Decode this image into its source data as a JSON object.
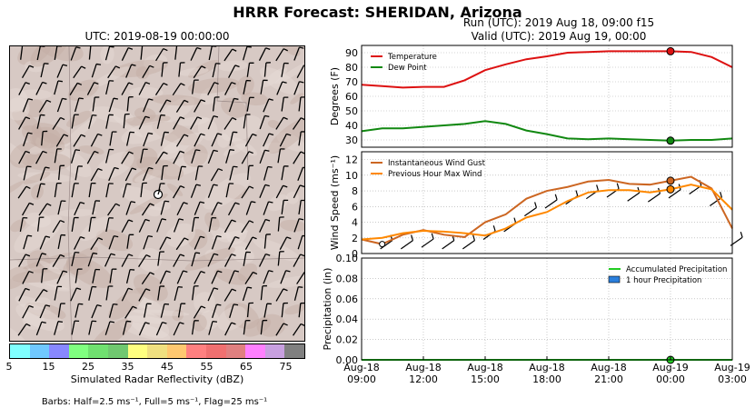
{
  "page": {
    "title": "HRRR Forecast: SHERIDAN, Arizona",
    "map_title": "UTC: 2019-08-19 00:00:00",
    "run_label": "Run (UTC): 2019 Aug 18, 09:00 f15",
    "valid_label": "Valid (UTC): 2019 Aug 19, 00:00",
    "colorbar_label": "Simulated Radar Reflectivity (dBZ)",
    "colorbar_ticks": [
      "5",
      "15",
      "25",
      "35",
      "45",
      "55",
      "65",
      "75"
    ],
    "colorbar_colors": [
      "#80ffff",
      "#70c8ff",
      "#8888ff",
      "#80ff80",
      "#70e070",
      "#70c870",
      "#ffff80",
      "#f0e080",
      "#ffc870",
      "#ff8080",
      "#f07070",
      "#e08080",
      "#ff80ff",
      "#c8a0e0",
      "#808080"
    ],
    "barb_note": "Barbs: Half=2.5 ms⁻¹, Full=5 ms⁻¹, Flag=25 ms⁻¹"
  },
  "chart_data": [
    {
      "type": "line",
      "ylabel": "Degrees (F)",
      "ylim": [
        25,
        95
      ],
      "yticks": [
        30,
        40,
        50,
        60,
        70,
        80,
        90
      ],
      "legend": "upper-left",
      "x": [
        "Aug-18 09:00",
        "Aug-18 10:00",
        "Aug-18 11:00",
        "Aug-18 12:00",
        "Aug-18 13:00",
        "Aug-18 14:00",
        "Aug-18 15:00",
        "Aug-18 16:00",
        "Aug-18 17:00",
        "Aug-18 18:00",
        "Aug-18 19:00",
        "Aug-18 20:00",
        "Aug-18 21:00",
        "Aug-18 22:00",
        "Aug-18 23:00",
        "Aug-19 00:00",
        "Aug-19 01:00",
        "Aug-19 02:00",
        "Aug-19 03:00"
      ],
      "series": [
        {
          "name": "Temperature",
          "color": "#dd1111",
          "values": [
            68,
            67,
            66,
            66.5,
            66.5,
            71,
            78,
            82,
            85.5,
            87.5,
            90,
            90.5,
            91,
            91,
            91,
            91,
            90.5,
            87,
            80
          ],
          "marker_at": "Aug-19 00:00"
        },
        {
          "name": "Dew Point",
          "color": "#118811",
          "values": [
            36,
            38,
            38,
            39,
            40,
            41,
            43,
            41,
            36.5,
            34,
            31,
            30.5,
            31,
            30.5,
            30,
            29.5,
            30,
            30,
            31
          ],
          "marker_at": "Aug-19 00:00"
        }
      ]
    },
    {
      "type": "line",
      "ylabel": "Wind Speed (ms⁻¹)",
      "ylim": [
        0,
        13
      ],
      "yticks": [
        0,
        2,
        4,
        6,
        8,
        10,
        12
      ],
      "legend": "upper-left",
      "x": [
        "Aug-18 09:00",
        "Aug-18 10:00",
        "Aug-18 11:00",
        "Aug-18 12:00",
        "Aug-18 13:00",
        "Aug-18 14:00",
        "Aug-18 15:00",
        "Aug-18 16:00",
        "Aug-18 17:00",
        "Aug-18 18:00",
        "Aug-18 19:00",
        "Aug-18 20:00",
        "Aug-18 21:00",
        "Aug-18 22:00",
        "Aug-18 23:00",
        "Aug-19 00:00",
        "Aug-19 01:00",
        "Aug-19 02:00",
        "Aug-19 03:00"
      ],
      "series": [
        {
          "name": "Instantaneous Wind Gust",
          "color": "#cc6622",
          "values": [
            1.8,
            1.2,
            2.4,
            3,
            2.4,
            2.1,
            4,
            5,
            7,
            8,
            8.5,
            9.2,
            9.4,
            8.9,
            8.8,
            9.3,
            9.8,
            8.3,
            3.2
          ],
          "marker_at": "Aug-19 00:00"
        },
        {
          "name": "Previous Hour Max Wind",
          "color": "#ff8800",
          "values": [
            1.8,
            2,
            2.6,
            2.9,
            2.8,
            2.6,
            2.3,
            3.2,
            4.6,
            5.3,
            6.7,
            7.8,
            8.1,
            8.1,
            7.8,
            8.2,
            8.8,
            8.2,
            5.6
          ],
          "marker_at": "Aug-19 00:00"
        }
      ]
    },
    {
      "type": "bar",
      "ylabel": "Precipitation (in)",
      "ylim": [
        0,
        0.1
      ],
      "yticks": [
        "0.00",
        "0.02",
        "0.04",
        "0.06",
        "0.08",
        "0.10"
      ],
      "legend": "upper-right",
      "xticks": [
        [
          "Aug-18",
          "09:00"
        ],
        [
          "Aug-18",
          "12:00"
        ],
        [
          "Aug-18",
          "15:00"
        ],
        [
          "Aug-18",
          "18:00"
        ],
        [
          "Aug-18",
          "21:00"
        ],
        [
          "Aug-19",
          "00:00"
        ],
        [
          "Aug-19",
          "03:00"
        ]
      ],
      "x": [
        "Aug-18 09:00",
        "Aug-18 10:00",
        "Aug-18 11:00",
        "Aug-18 12:00",
        "Aug-18 13:00",
        "Aug-18 14:00",
        "Aug-18 15:00",
        "Aug-18 16:00",
        "Aug-18 17:00",
        "Aug-18 18:00",
        "Aug-18 19:00",
        "Aug-18 20:00",
        "Aug-18 21:00",
        "Aug-18 22:00",
        "Aug-18 23:00",
        "Aug-19 00:00",
        "Aug-19 01:00",
        "Aug-19 02:00",
        "Aug-19 03:00"
      ],
      "series": [
        {
          "name": "Accumulated Precipitation",
          "color": "#22cc22",
          "values": [
            0,
            0,
            0,
            0,
            0,
            0,
            0,
            0,
            0,
            0,
            0,
            0,
            0,
            0,
            0,
            0,
            0,
            0,
            0
          ],
          "marker_at": "Aug-19 00:00"
        },
        {
          "name": "1 hour Precipitation",
          "color": "#2b7fdd",
          "values": [
            0,
            0,
            0,
            0,
            0,
            0,
            0,
            0,
            0,
            0,
            0,
            0,
            0,
            0,
            0,
            0,
            0,
            0,
            0
          ]
        }
      ]
    }
  ]
}
